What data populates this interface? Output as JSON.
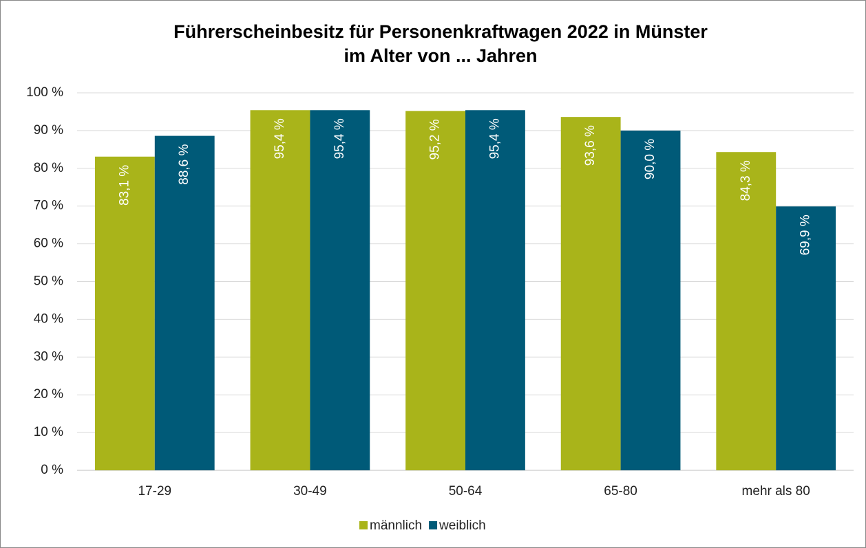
{
  "chart_data": {
    "type": "bar",
    "title": [
      "Führerscheinbesitz für Personenkraftwagen 2022 in Münster",
      "im Alter von ... Jahren"
    ],
    "categories": [
      "17-29",
      "30-49",
      "50-64",
      "65-80",
      "mehr als 80"
    ],
    "series": [
      {
        "name": "männlich",
        "color": "#a9b41a",
        "values": [
          83.1,
          95.4,
          95.2,
          93.6,
          84.3
        ],
        "value_labels": [
          "83,1 %",
          "95,4 %",
          "95,2 %",
          "93,6 %",
          "84,3 %"
        ]
      },
      {
        "name": "weiblich",
        "color": "#005a78",
        "values": [
          88.6,
          95.4,
          95.4,
          90.0,
          69.9
        ],
        "value_labels": [
          "88,6 %",
          "95,4 %",
          "95,4 %",
          "90,0 %",
          "69,9 %"
        ]
      }
    ],
    "ylim": [
      0,
      100
    ],
    "yticks": [
      {
        "value": 0,
        "label": "0 %"
      },
      {
        "value": 10,
        "label": "10 %"
      },
      {
        "value": 20,
        "label": "20 %"
      },
      {
        "value": 30,
        "label": "30 %"
      },
      {
        "value": 40,
        "label": "40 %"
      },
      {
        "value": 50,
        "label": "50 %"
      },
      {
        "value": 60,
        "label": "60 %"
      },
      {
        "value": 70,
        "label": "70 %"
      },
      {
        "value": 80,
        "label": "80 %"
      },
      {
        "value": 90,
        "label": "90 %"
      },
      {
        "value": 100,
        "label": "100 %"
      }
    ],
    "grid": true,
    "legend": "bottom"
  }
}
